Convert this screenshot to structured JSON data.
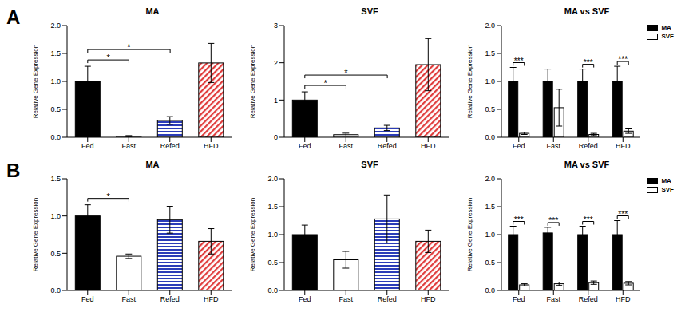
{
  "chart_data": [
    {
      "type": "bar",
      "title": "MA",
      "annotations": [
        "A"
      ],
      "y_label": "Relative Gene Expression",
      "categories": [
        "Fed",
        "Fast",
        "Refed",
        "HFD"
      ],
      "values": [
        1.0,
        0.02,
        0.3,
        1.33
      ],
      "errors": [
        0.27,
        0.01,
        0.07,
        0.35
      ],
      "colors": [
        "#000000",
        "#ffffff",
        "#2b3cb8",
        "#e03c3c"
      ],
      "ylim": [
        0,
        2
      ],
      "yticks": [
        {
          "value": 0,
          "label": "0.0"
        },
        0.5,
        {
          "value": 1,
          "label": "1.0"
        },
        1.5,
        {
          "value": 2,
          "label": "2.0"
        }
      ],
      "significance": [
        {
          "from": "Fed",
          "to": "Fast",
          "label": "*"
        },
        {
          "from": "Fed",
          "to": "Refed",
          "label": "*"
        }
      ],
      "grid": false
    },
    {
      "type": "bar",
      "title": "SVF",
      "y_label": "Relative Gene Expression",
      "categories": [
        "Fed",
        "Fast",
        "Refed",
        "HFD"
      ],
      "values": [
        1.0,
        0.07,
        0.25,
        1.95
      ],
      "errors": [
        0.22,
        0.04,
        0.07,
        0.7
      ],
      "colors": [
        "#000000",
        "#ffffff",
        "#2b3cb8",
        "#e03c3c"
      ],
      "ylim": [
        0,
        3
      ],
      "yticks": [
        0,
        1,
        2,
        3
      ],
      "significance": [
        {
          "from": "Fed",
          "to": "Fast",
          "label": "*"
        },
        {
          "from": "Fed",
          "to": "Refed",
          "label": "*"
        }
      ],
      "grid": false
    },
    {
      "type": "grouped_bar",
      "title": "MA vs SVF",
      "y_label": "Relative Gene Expression",
      "categories": [
        "Fed",
        "Fast",
        "Refed",
        "HFD"
      ],
      "series": [
        {
          "name": "MA",
          "color": "#000000",
          "values": [
            1.0,
            1.0,
            1.0,
            1.0
          ],
          "errors": [
            0.25,
            0.22,
            0.22,
            0.27
          ]
        },
        {
          "name": "SVF",
          "color": "#ffffff",
          "values": [
            0.07,
            0.53,
            0.05,
            0.11
          ],
          "errors": [
            0.02,
            0.33,
            0.02,
            0.04
          ]
        }
      ],
      "ylim": [
        0,
        2
      ],
      "yticks": [
        {
          "value": 0,
          "label": "0.0"
        },
        0.5,
        {
          "value": 1,
          "label": "1.0"
        },
        1.5,
        {
          "value": 2,
          "label": "2.0"
        }
      ],
      "significance": [
        {
          "category": "Fed",
          "label": "***"
        },
        {
          "category": "Refed",
          "label": "***"
        },
        {
          "category": "HFD",
          "label": "***"
        }
      ],
      "legend": "top-right",
      "grid": false
    },
    {
      "type": "bar",
      "title": "MA",
      "annotations": [
        "B"
      ],
      "y_label": "Relative Gene Expression",
      "categories": [
        "Fed",
        "Fast",
        "Refed",
        "HFD"
      ],
      "values": [
        1.0,
        0.46,
        0.95,
        0.66
      ],
      "errors": [
        0.15,
        0.03,
        0.18,
        0.17
      ],
      "colors": [
        "#000000",
        "#ffffff",
        "#2b3cb8",
        "#e03c3c"
      ],
      "ylim": [
        0,
        1.5
      ],
      "yticks": [
        {
          "value": 0,
          "label": "0.0"
        },
        0.5,
        {
          "value": 1,
          "label": "1.0"
        },
        1.5
      ],
      "significance": [
        {
          "from": "Fed",
          "to": "Fast",
          "label": "*"
        }
      ],
      "grid": false
    },
    {
      "type": "bar",
      "title": "SVF",
      "y_label": "Relative Gene Expression",
      "categories": [
        "Fed",
        "Fast",
        "Refed",
        "HFD"
      ],
      "values": [
        1.0,
        0.55,
        1.28,
        0.88
      ],
      "errors": [
        0.17,
        0.15,
        0.43,
        0.2
      ],
      "colors": [
        "#000000",
        "#ffffff",
        "#2b3cb8",
        "#e03c3c"
      ],
      "ylim": [
        0,
        2
      ],
      "yticks": [
        {
          "value": 0,
          "label": "0.0"
        },
        0.5,
        {
          "value": 1,
          "label": "1.0"
        },
        1.5,
        {
          "value": 2,
          "label": "2.0"
        }
      ],
      "significance": [],
      "grid": false
    },
    {
      "type": "grouped_bar",
      "title": "MA vs SVF",
      "y_label": "Relative Gene Expression",
      "categories": [
        "Fed",
        "Fast",
        "Refed",
        "HFD"
      ],
      "series": [
        {
          "name": "MA",
          "color": "#000000",
          "values": [
            1.0,
            1.03,
            1.0,
            1.0
          ],
          "errors": [
            0.15,
            0.1,
            0.15,
            0.25
          ]
        },
        {
          "name": "SVF",
          "color": "#ffffff",
          "values": [
            0.1,
            0.12,
            0.14,
            0.13
          ],
          "errors": [
            0.02,
            0.03,
            0.03,
            0.03
          ]
        }
      ],
      "ylim": [
        0,
        2
      ],
      "yticks": [
        {
          "value": 0,
          "label": "0.0"
        },
        0.5,
        {
          "value": 1,
          "label": "1.0"
        },
        1.5,
        {
          "value": 2,
          "label": "2.0"
        }
      ],
      "significance": [
        {
          "category": "Fed",
          "label": "***"
        },
        {
          "category": "Fast",
          "label": "***"
        },
        {
          "category": "Refed",
          "label": "***"
        },
        {
          "category": "HFD",
          "label": "***"
        }
      ],
      "legend": "top-right",
      "grid": false
    }
  ]
}
